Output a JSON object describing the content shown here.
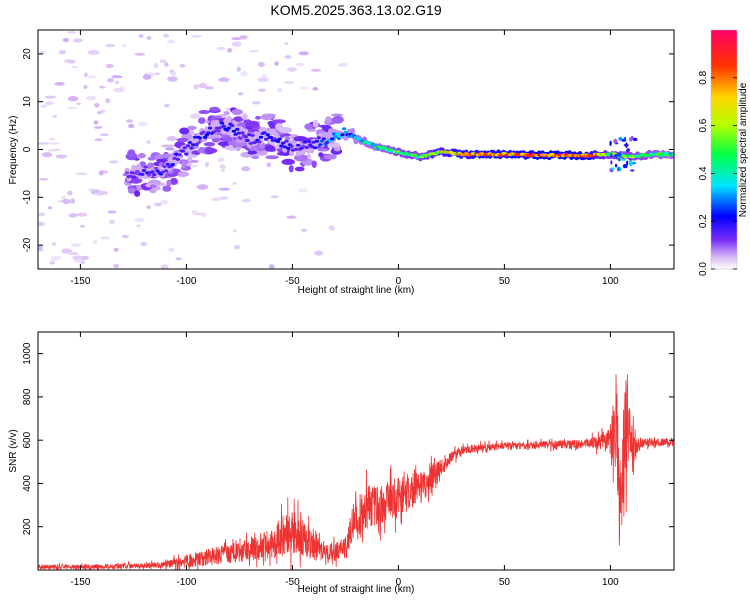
{
  "figure": {
    "title": "KOM5.2025.363.13.02.G19"
  },
  "chart_data": [
    {
      "type": "heatmap",
      "name": "doppler-spectrogram",
      "xlabel": "Height of straight line (km)",
      "ylabel": "Frequency (Hz)",
      "xlim": [
        -170,
        130
      ],
      "ylim": [
        -25,
        25
      ],
      "xticks": [
        -150,
        -100,
        -50,
        0,
        50,
        100
      ],
      "yticks": [
        -20,
        -10,
        0,
        10,
        20
      ],
      "colorbar": {
        "label": "Normalized spectral amplitude",
        "range": [
          0,
          1
        ],
        "ticks": [
          0.0,
          0.2,
          0.4,
          0.6,
          0.8
        ],
        "tick_labels": [
          "0.0",
          "0.2",
          "0.4",
          "0.6",
          "0.8"
        ],
        "colormap": [
          "#ffffff",
          "#d7b8f5",
          "#7b2ff7",
          "#0000ff",
          "#00e5ff",
          "#00ff44",
          "#b5ff00",
          "#ffd400",
          "#ff3300",
          "#ff0066"
        ]
      },
      "ridge": {
        "x": [
          -125,
          -110,
          -100,
          -90,
          -80,
          -70,
          -60,
          -50,
          -40,
          -30,
          -25,
          -20,
          -15,
          -10,
          -5,
          0,
          5,
          10,
          20,
          30,
          50,
          70,
          90,
          100,
          110,
          120,
          130
        ],
        "freq": [
          -5,
          -4,
          0,
          4,
          5,
          2,
          3,
          0,
          1,
          3,
          3.5,
          2.5,
          1.5,
          0.5,
          0,
          -0.5,
          -1,
          -1.5,
          -0.5,
          -1,
          -1,
          -1.2,
          -1.2,
          -1.0,
          -1.5,
          -1.0,
          -1.0
        ],
        "amplitude": [
          0.25,
          0.3,
          0.3,
          0.3,
          0.3,
          0.3,
          0.3,
          0.3,
          0.3,
          0.4,
          0.4,
          0.45,
          0.5,
          0.5,
          0.55,
          0.6,
          0.6,
          0.6,
          0.75,
          0.85,
          0.85,
          0.95,
          0.9,
          0.6,
          0.6,
          0.55,
          0.5
        ]
      }
    },
    {
      "type": "line",
      "name": "snr-trace",
      "xlabel": "Height of straight line (km)",
      "ylabel": "SNR (v/v)",
      "xlim": [
        -170,
        130
      ],
      "ylim": [
        0,
        1100
      ],
      "xticks": [
        -150,
        -100,
        -50,
        0,
        50,
        100
      ],
      "yticks": [
        200,
        400,
        600,
        800,
        1000
      ],
      "color": "#ee3333",
      "series": [
        {
          "name": "SNR",
          "x": [
            -170,
            -140,
            -120,
            -110,
            -100,
            -90,
            -80,
            -70,
            -60,
            -55,
            -50,
            -45,
            -40,
            -35,
            -30,
            -25,
            -22,
            -20,
            -15,
            -10,
            -5,
            0,
            5,
            10,
            15,
            20,
            25,
            30,
            40,
            50,
            60,
            70,
            80,
            90,
            95,
            100,
            103,
            104,
            105,
            106,
            107,
            108,
            109,
            110,
            112,
            115,
            120,
            130
          ],
          "y": [
            15,
            15,
            20,
            25,
            40,
            60,
            75,
            95,
            120,
            150,
            175,
            150,
            100,
            80,
            85,
            100,
            200,
            250,
            290,
            300,
            320,
            340,
            360,
            390,
            420,
            470,
            520,
            555,
            565,
            575,
            575,
            580,
            580,
            585,
            590,
            595,
            700,
            400,
            200,
            500,
            650,
            700,
            800,
            550,
            575,
            590,
            590,
            590
          ],
          "noise": [
            10,
            10,
            12,
            15,
            30,
            40,
            45,
            55,
            70,
            90,
            100,
            90,
            60,
            40,
            45,
            60,
            80,
            90,
            100,
            100,
            100,
            90,
            90,
            70,
            60,
            40,
            25,
            20,
            18,
            16,
            16,
            18,
            20,
            25,
            35,
            60,
            250,
            250,
            250,
            250,
            250,
            250,
            250,
            150,
            40,
            25,
            20,
            18
          ]
        }
      ]
    }
  ]
}
